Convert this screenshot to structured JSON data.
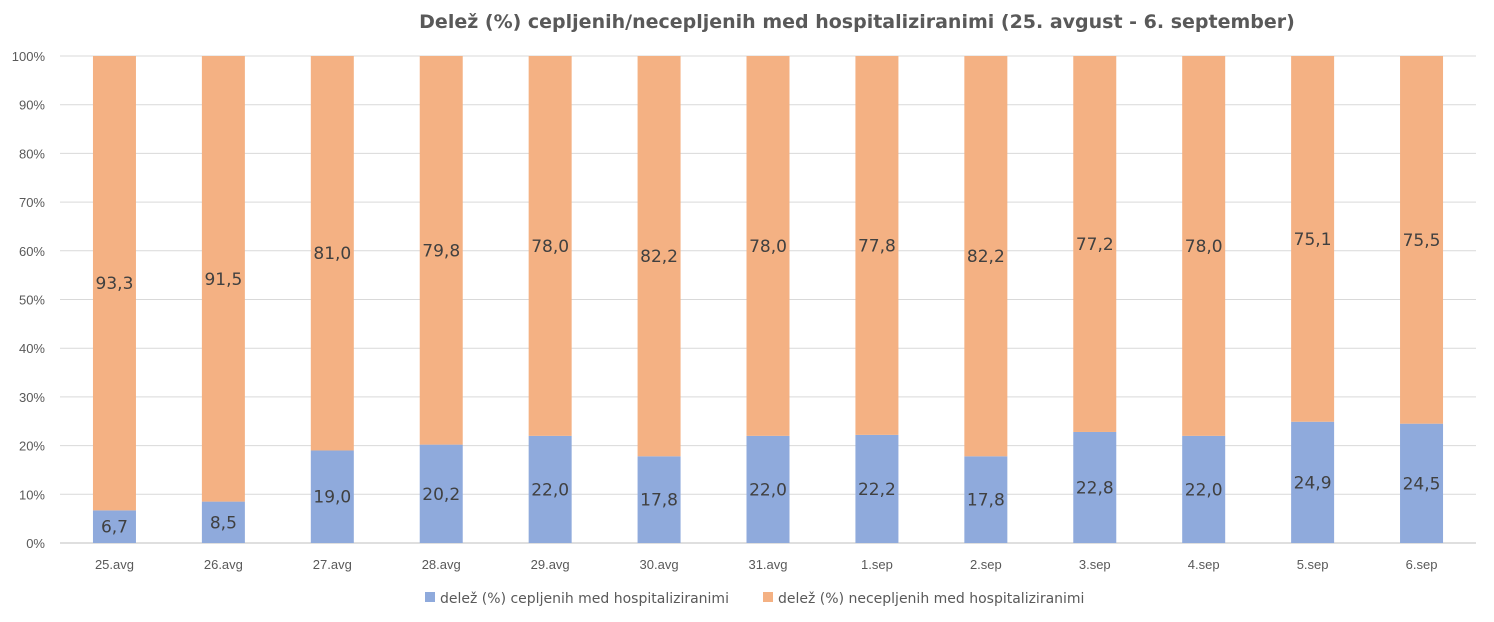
{
  "chart_data": {
    "type": "bar",
    "stacked": true,
    "title": "Delež (%) cepljenih/necepljenih med hospitaliziranimi (25. avgust - 6. september)",
    "categories": [
      "25.avg",
      "26.avg",
      "27.avg",
      "28.avg",
      "29.avg",
      "30.avg",
      "31.avg",
      "1.sep",
      "2.sep",
      "3.sep",
      "4.sep",
      "5.sep",
      "6.sep"
    ],
    "series": [
      {
        "name": "delež (%) cepljenih med hospitaliziranimi",
        "color": "#8FAADC",
        "values": [
          6.7,
          8.5,
          19.0,
          20.2,
          22.0,
          17.8,
          22.0,
          22.2,
          17.8,
          22.8,
          22.0,
          24.9,
          24.5
        ],
        "labels": [
          "6,7",
          "8,5",
          "19,0",
          "20,2",
          "22,0",
          "17,8",
          "22,0",
          "22,2",
          "17,8",
          "22,8",
          "22,0",
          "24,9",
          "24,5"
        ]
      },
      {
        "name": "delež (%) necepljenih med hospitaliziranimi",
        "color": "#F4B183",
        "values": [
          93.3,
          91.5,
          81.0,
          79.8,
          78.0,
          82.2,
          78.0,
          77.8,
          82.2,
          77.2,
          78.0,
          75.1,
          75.5
        ],
        "labels": [
          "93,3",
          "91,5",
          "81,0",
          "79,8",
          "78,0",
          "82,2",
          "78,0",
          "77,8",
          "82,2",
          "77,2",
          "78,0",
          "75,1",
          "75,5"
        ]
      }
    ],
    "ylim": [
      0,
      100
    ],
    "yticks": [
      "0%",
      "10%",
      "20%",
      "30%",
      "40%",
      "50%",
      "60%",
      "70%",
      "80%",
      "90%",
      "100%"
    ],
    "grid": true,
    "legend_position": "bottom"
  }
}
